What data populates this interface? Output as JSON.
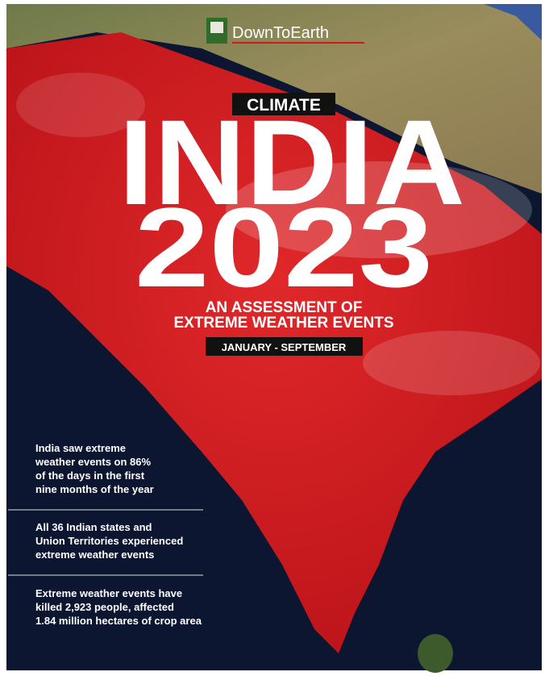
{
  "brand": "DownToEarth",
  "tag": "CLIMATE",
  "title": "INDIA",
  "year": "2023",
  "subtitle": [
    "AN ASSESSMENT OF",
    "EXTREME WEATHER EVENTS"
  ],
  "period": "JANUARY - SEPTEMBER",
  "facts": [
    [
      "India saw extreme",
      "weather events on 86%",
      "of the days in the first",
      "nine months of the year"
    ],
    [
      "All 36 Indian states and",
      "Union Territories experienced",
      "extreme weather events"
    ],
    [
      "Extreme weather events have",
      "killed 2,923 people, affected",
      "1.84 million hectares of crop area"
    ]
  ]
}
